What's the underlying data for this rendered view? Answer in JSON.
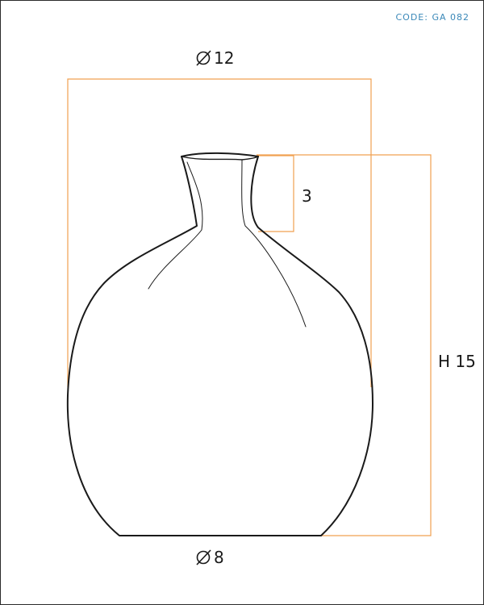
{
  "code_label": "CODE: GA 082",
  "dimensions": {
    "top_diameter": "12",
    "neck_height": "3",
    "total_height": "H 15",
    "base_diameter": "8"
  },
  "colors": {
    "dimension_line": "#f0a050",
    "outline": "#1a1a1a",
    "code_text": "#3a88b8"
  }
}
